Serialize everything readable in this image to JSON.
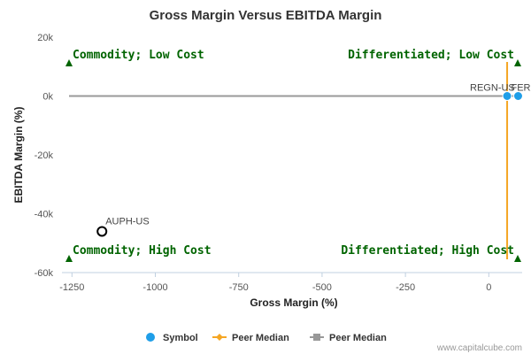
{
  "chart_data": {
    "type": "scatter",
    "title": "Gross Margin Versus EBITDA Margin",
    "xlabel": "Gross Margin (%)",
    "ylabel": "EBITDA Margin (%)",
    "xlim": [
      -1280,
      100
    ],
    "ylim": [
      -60000,
      20000
    ],
    "x_ticks": [
      -1250,
      -1000,
      -750,
      -500,
      -250,
      0
    ],
    "x_tick_labels": [
      "-1250",
      "-1000",
      "-750",
      "-500",
      "-250",
      "0"
    ],
    "y_ticks": [
      20000,
      0,
      -20000,
      -40000,
      -60000
    ],
    "y_tick_labels": [
      "20k",
      "0k",
      "-20k",
      "-40k",
      "-60k"
    ],
    "grid": false,
    "points": [
      {
        "label": "REGN-US",
        "x": 55,
        "y": 0,
        "style": "symbol"
      },
      {
        "label": "FERX-US",
        "x": 88,
        "y": 0,
        "style": "symbol"
      },
      {
        "label": "AUPH-US",
        "x": -1160,
        "y": -46000,
        "style": "hollow"
      }
    ],
    "peer_median_x": 55,
    "peer_median_y": 0,
    "quadrants": [
      {
        "label": "Commodity; Low Cost",
        "pos": "top-left"
      },
      {
        "label": "Differentiated; Low Cost",
        "pos": "top-right"
      },
      {
        "label": "Commodity; High Cost",
        "pos": "bottom-left"
      },
      {
        "label": "Differentiated; High Cost",
        "pos": "bottom-right"
      }
    ],
    "legend": [
      {
        "label": "Symbol",
        "marker": "circle"
      },
      {
        "label": "Peer Median",
        "marker": "diamond-line"
      },
      {
        "label": "Peer Median",
        "marker": "square-line"
      }
    ],
    "legend_position": "bottom-center"
  },
  "colors": {
    "symbol": "#1f9ee8",
    "median_x": "#f5a623",
    "median_y": "#999999",
    "quad_text": "#006400",
    "quad_marker": "#006400"
  },
  "watermark": "www.capitalcube.com"
}
